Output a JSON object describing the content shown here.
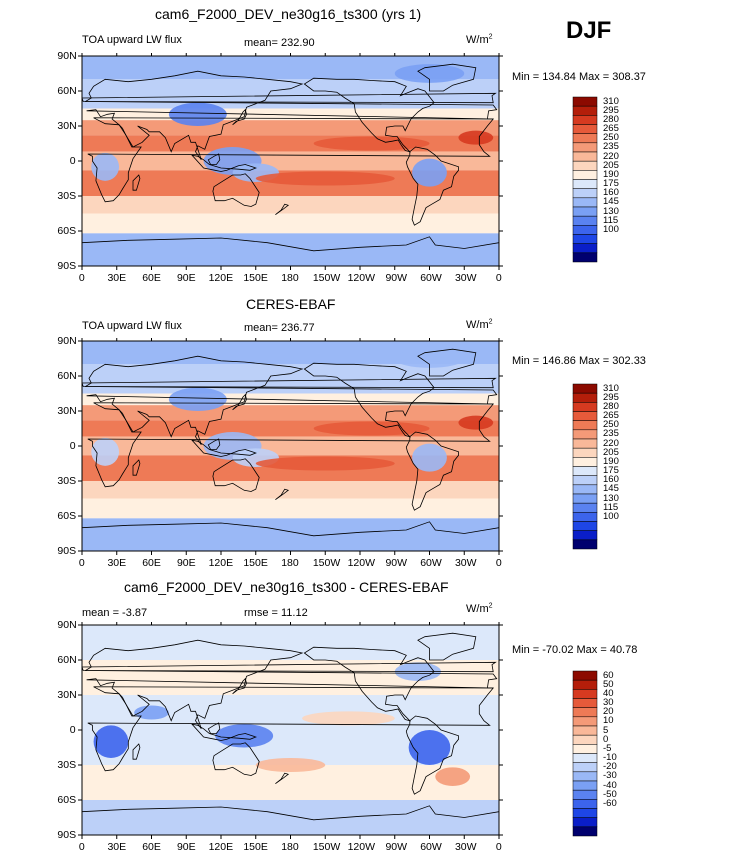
{
  "season": "DJF",
  "colorbar_colors": {
    "abs": [
      "#00006e",
      "#0a1ec8",
      "#1e46e6",
      "#3c64ec",
      "#5a82f0",
      "#7aa0f4",
      "#9ab8f6",
      "#bcd0f8",
      "#dce8fa",
      "#fff0e0",
      "#fcd6be",
      "#f9b899",
      "#f49a78",
      "#ee7a56",
      "#e65a3a",
      "#d63a20",
      "#b41e0a",
      "#8c0a00"
    ],
    "diff": [
      "#00006e",
      "#0a1ec8",
      "#1e46e6",
      "#3c64ec",
      "#5a82f0",
      "#7aa0f4",
      "#9ab8f6",
      "#bcd0f8",
      "#dce8fa",
      "#fff0e0",
      "#fcd6be",
      "#f9b899",
      "#f49a78",
      "#ee7a56",
      "#e65a3a",
      "#d63a20",
      "#b41e0a",
      "#8c0a00"
    ]
  },
  "panels": [
    {
      "title": "cam6_F2000_DEV_ne30g16_ts300 (yrs 1)",
      "left_label": "TOA upward LW flux",
      "mean_text": "mean= 232.90",
      "units": "W/m",
      "units_sup": "2",
      "minmax_text": "Min = 134.84 Max = 308.37",
      "colorbar_labels": [
        "310",
        "295",
        "280",
        "265",
        "250",
        "235",
        "220",
        "205",
        "190",
        "175",
        "160",
        "145",
        "130",
        "115",
        "100"
      ],
      "chart_data": {
        "type": "heatmap",
        "title": "cam6_F2000_DEV_ne30g16_ts300 (yrs 1)",
        "variable": "TOA upward LW flux",
        "mean": 232.9,
        "min": 134.84,
        "max": 308.37,
        "units": "W/m2",
        "levels": [
          100,
          115,
          130,
          145,
          160,
          175,
          190,
          205,
          220,
          235,
          250,
          265,
          280,
          295,
          310
        ],
        "x_ticks": [
          "0",
          "30E",
          "60E",
          "90E",
          "120E",
          "150E",
          "180",
          "150W",
          "120W",
          "90W",
          "60W",
          "30W",
          "0"
        ],
        "y_ticks": [
          "90N",
          "60N",
          "30N",
          "0",
          "30S",
          "60S",
          "90S"
        ]
      }
    },
    {
      "title": "CERES-EBAF",
      "left_label": "TOA upward LW flux",
      "mean_text": "mean= 236.77",
      "units": "W/m",
      "units_sup": "2",
      "minmax_text": "Min = 146.86 Max = 302.33",
      "colorbar_labels": [
        "310",
        "295",
        "280",
        "265",
        "250",
        "235",
        "220",
        "205",
        "190",
        "175",
        "160",
        "145",
        "130",
        "115",
        "100"
      ],
      "chart_data": {
        "type": "heatmap",
        "title": "CERES-EBAF",
        "variable": "TOA upward LW flux",
        "mean": 236.77,
        "min": 146.86,
        "max": 302.33,
        "units": "W/m2",
        "levels": [
          100,
          115,
          130,
          145,
          160,
          175,
          190,
          205,
          220,
          235,
          250,
          265,
          280,
          295,
          310
        ],
        "x_ticks": [
          "0",
          "30E",
          "60E",
          "90E",
          "120E",
          "150E",
          "180",
          "150W",
          "120W",
          "90W",
          "60W",
          "30W",
          "0"
        ],
        "y_ticks": [
          "90N",
          "60N",
          "30N",
          "0",
          "30S",
          "60S",
          "90S"
        ]
      }
    },
    {
      "title": "cam6_F2000_DEV_ne30g16_ts300 - CERES-EBAF",
      "left_label": "mean = -3.87",
      "mean_text": "rmse = 11.12",
      "units": "W/m",
      "units_sup": "2",
      "minmax_text": "Min = -70.02 Max = 40.78",
      "colorbar_labels": [
        "60",
        "50",
        "40",
        "30",
        "20",
        "10",
        "5",
        "0",
        "-5",
        "-10",
        "-20",
        "-30",
        "-40",
        "-50",
        "-60"
      ],
      "chart_data": {
        "type": "heatmap",
        "title": "cam6_F2000_DEV_ne30g16_ts300 - CERES-EBAF",
        "mean": -3.87,
        "rmse": 11.12,
        "min": -70.02,
        "max": 40.78,
        "units": "W/m2",
        "levels": [
          -60,
          -50,
          -40,
          -30,
          -20,
          -10,
          -5,
          0,
          5,
          10,
          20,
          30,
          40,
          50,
          60
        ],
        "x_ticks": [
          "0",
          "30E",
          "60E",
          "90E",
          "120E",
          "150E",
          "180",
          "150W",
          "120W",
          "90W",
          "60W",
          "30W",
          "0"
        ],
        "y_ticks": [
          "90N",
          "60N",
          "30N",
          "0",
          "30S",
          "60S",
          "90S"
        ]
      }
    }
  ]
}
